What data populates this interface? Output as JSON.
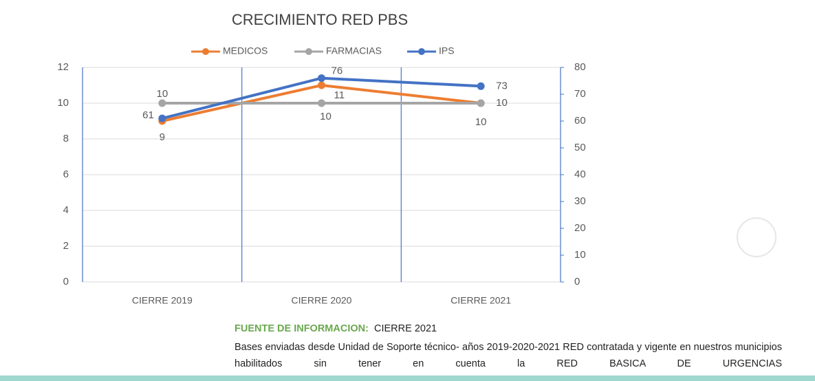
{
  "chart_data": {
    "type": "line",
    "title": "CRECIMIENTO RED PBS",
    "categories": [
      "CIERRE 2019",
      "CIERRE 2020",
      "CIERRE 2021"
    ],
    "series": [
      {
        "name": "MEDICOS",
        "color": "#ed7d31",
        "values": [
          9,
          11,
          10
        ]
      },
      {
        "name": "FARMACIAS",
        "color": "#a5a5a5",
        "values": [
          10,
          10,
          10
        ]
      },
      {
        "name": "IPS",
        "color": "#4472c4",
        "values": [
          61,
          76,
          73
        ],
        "axis": "y2"
      }
    ],
    "ylim": [
      0,
      12
    ],
    "yticks": [
      0,
      2,
      4,
      6,
      8,
      10,
      12
    ],
    "y2lim": [
      0,
      80
    ],
    "y2ticks": [
      0,
      10,
      20,
      30,
      40,
      50,
      60,
      70,
      80
    ],
    "grid": true,
    "legend": "top"
  },
  "source": {
    "label": "FUENTE DE INFORMACION:",
    "value": "CIERRE 2021",
    "note": "Bases enviadas desde Unidad de Soporte técnico- años 2019-2020-2021 RED contratada y vigente en nuestros municipios habilitados sin tener en cuenta la RED BASICA DE URGENCIAS"
  }
}
